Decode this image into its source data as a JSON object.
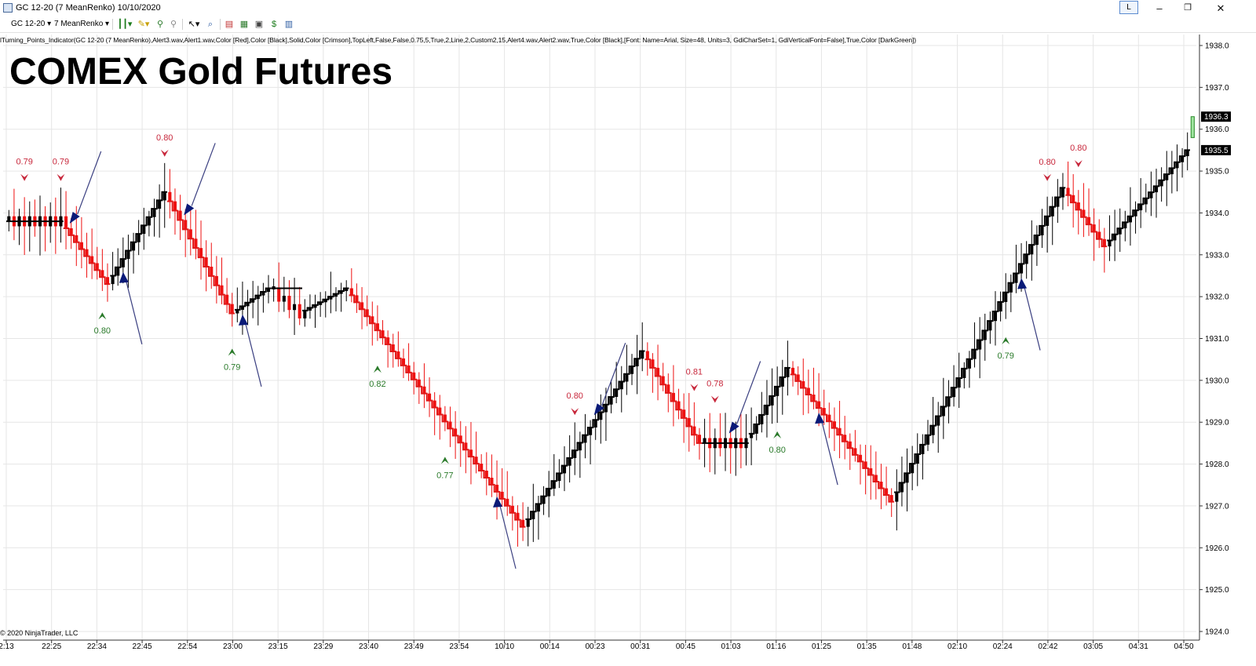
{
  "window": {
    "title": "GC 12-20 (7 MeanRenko)  10/10/2020",
    "link_label": "L",
    "minimize": "–",
    "maximize": "❐",
    "close": "✕"
  },
  "toolbar": {
    "instrument": "GC 12-20",
    "interval": "7 MeanRenko",
    "icons": [
      "chart-style-icon",
      "drawing-pencil-icon",
      "drawing-tools-icon",
      "cursor-icon",
      "zoom-icon",
      "strategies-icon",
      "indicators-icon",
      "templates-icon",
      "data-box-icon",
      "properties-icon"
    ]
  },
  "indicator_label": "lTurning_Points_Indicator(GC 12-20 (7 MeanRenko),Alert3.wav,Alert1.wav,Color [Red],Color [Black],Solid,Color [Crimson],TopLeft,False,False,0.75,5,True,2,Line,2,Custom2,15,Alert4.wav,Alert2.wav,True,Color [Black],[Font: Name=Arial, Size=48, Units=3, GdiCharSet=1, GdiVerticalFont=False],True,Color [DarkGreen])",
  "chart_title": "COMEX Gold Futures",
  "copyright": "© 2020 NinjaTrader, LLC",
  "colors": {
    "up_bar": "#000000",
    "down_bar": "#ee1111",
    "up_line": "#000000",
    "down_line": "#e01818",
    "top_label": "#c8283c",
    "bottom_label": "#2a7a2a",
    "arrow": "#0a1a78",
    "arrow_shaft": "#3a3f80",
    "grid": "#e6e6e6",
    "last_bar": "#9fe49f"
  },
  "chart_data": {
    "type": "candlestick",
    "y_axis": {
      "min": 1924.0,
      "max": 1938.0,
      "step": 1.0,
      "tick_labels": [
        "1924.0",
        "1925.0",
        "1926.0",
        "1927.0",
        "1928.0",
        "1929.0",
        "1930.0",
        "1931.0",
        "1932.0",
        "1933.0",
        "1934.0",
        "1935.0",
        "1936.0",
        "1937.0",
        "1938.0"
      ],
      "price_markers": [
        {
          "label": "1936.3",
          "value": 1936.3
        },
        {
          "label": "1935.5",
          "value": 1935.5
        }
      ]
    },
    "x_axis": {
      "tick_labels": [
        "2:13",
        "22:25",
        "22:34",
        "22:45",
        "22:54",
        "23:00",
        "23:15",
        "23:29",
        "23:40",
        "23:49",
        "23:54",
        "10/10",
        "00:14",
        "00:23",
        "00:31",
        "00:45",
        "01:03",
        "01:16",
        "01:25",
        "01:35",
        "01:48",
        "02:10",
        "02:24",
        "02:42",
        "03:05",
        "04:31",
        "04:50"
      ]
    },
    "legs": [
      {
        "dir": "flat",
        "from": 1933.8,
        "to": 1933.8,
        "bars": 11
      },
      {
        "dir": "down",
        "from": 1933.8,
        "to": 1932.3,
        "bars": 9
      },
      {
        "dir": "up",
        "from": 1932.3,
        "to": 1934.5,
        "bars": 11
      },
      {
        "dir": "down",
        "from": 1934.5,
        "to": 1931.6,
        "bars": 13
      },
      {
        "dir": "up",
        "from": 1931.6,
        "to": 1932.2,
        "bars": 7
      },
      {
        "dir": "flat",
        "from": 1932.2,
        "to": 1931.6,
        "bars": 6
      },
      {
        "dir": "up",
        "from": 1931.6,
        "to": 1932.2,
        "bars": 9
      },
      {
        "dir": "down",
        "from": 1932.2,
        "to": 1926.5,
        "bars": 34
      },
      {
        "dir": "up",
        "from": 1926.5,
        "to": 1930.7,
        "bars": 23
      },
      {
        "dir": "down",
        "from": 1930.7,
        "to": 1928.5,
        "bars": 11
      },
      {
        "dir": "flat",
        "from": 1928.5,
        "to": 1928.5,
        "bars": 9
      },
      {
        "dir": "up",
        "from": 1928.5,
        "to": 1930.3,
        "bars": 8
      },
      {
        "dir": "down",
        "from": 1930.3,
        "to": 1927.1,
        "bars": 20
      },
      {
        "dir": "up",
        "from": 1927.1,
        "to": 1934.6,
        "bars": 33
      },
      {
        "dir": "down",
        "from": 1934.6,
        "to": 1933.2,
        "bars": 8
      },
      {
        "dir": "up",
        "from": 1933.2,
        "to": 1935.5,
        "bars": 16
      }
    ],
    "turning_points": [
      {
        "kind": "top",
        "label": "0.79",
        "bar": 3
      },
      {
        "kind": "top",
        "label": "0.79",
        "bar": 10
      },
      {
        "kind": "bottom",
        "label": "0.80",
        "bar": 18
      },
      {
        "kind": "top",
        "label": "0.80",
        "bar": 30
      },
      {
        "kind": "bottom",
        "label": "0.79",
        "bar": 43
      },
      {
        "kind": "bottom",
        "label": "0.82",
        "bar": 71
      },
      {
        "kind": "bottom",
        "label": "0.77",
        "bar": 84
      },
      {
        "kind": "top",
        "label": "0.80",
        "bar": 109
      },
      {
        "kind": "top",
        "label": "0.81",
        "bar": 132
      },
      {
        "kind": "top",
        "label": "0.78",
        "bar": 136
      },
      {
        "kind": "bottom",
        "label": "0.80",
        "bar": 148
      },
      {
        "kind": "bottom",
        "label": "0.79",
        "bar": 192
      },
      {
        "kind": "top",
        "label": "0.80",
        "bar": 200
      },
      {
        "kind": "top",
        "label": "0.80",
        "bar": 206
      }
    ],
    "signal_arrows": [
      {
        "dir": "down",
        "bar": 12
      },
      {
        "dir": "up",
        "bar": 22
      },
      {
        "dir": "down",
        "bar": 34
      },
      {
        "dir": "up",
        "bar": 45
      },
      {
        "dir": "up",
        "bar": 94
      },
      {
        "dir": "down",
        "bar": 113
      },
      {
        "dir": "down",
        "bar": 139
      },
      {
        "dir": "up",
        "bar": 156
      },
      {
        "dir": "up",
        "bar": 195
      }
    ]
  }
}
